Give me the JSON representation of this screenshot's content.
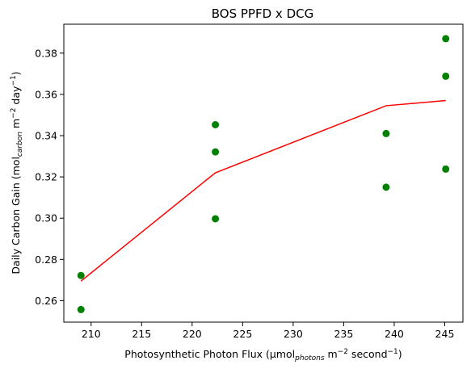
{
  "chart_data": {
    "type": "scatter",
    "title": "BOS PPFD x DCG",
    "xlabel": {
      "pre": "Photosynthetic Photon Flux (µmol",
      "sub": "photons",
      "mid": " m",
      "sup1": "−2",
      "mid2": " second",
      "sup2": "−1",
      "post": ")"
    },
    "ylabel": {
      "pre": "Daily Carbon Gain (mol",
      "sub": "carbon",
      "mid": " m",
      "sup1": "−2",
      "mid2": " day",
      "sup2": "−1",
      "post": ")"
    },
    "xlim": [
      207.3,
      246.8
    ],
    "ylim": [
      0.2496,
      0.394
    ],
    "xticks": [
      210,
      215,
      220,
      225,
      230,
      235,
      240,
      245
    ],
    "yticks": [
      0.26,
      0.28,
      0.3,
      0.32,
      0.34,
      0.36,
      0.38
    ],
    "ytick_labels": [
      "0.26",
      "0.28",
      "0.30",
      "0.32",
      "0.34",
      "0.36",
      "0.38"
    ],
    "grid": false,
    "colors": {
      "points": "#008000",
      "line": "#ff0000"
    },
    "series": [
      {
        "kind": "scatter",
        "x": [
          209,
          209,
          222.3,
          222.3,
          222.3,
          239.2,
          239.2,
          245.1,
          245.1,
          245.1
        ],
        "y": [
          0.2722,
          0.2557,
          0.3453,
          0.3321,
          0.2997,
          0.341,
          0.315,
          0.387,
          0.3688,
          0.3238
        ]
      },
      {
        "kind": "line",
        "x": [
          209,
          222.3,
          239.2,
          245.1
        ],
        "y": [
          0.2695,
          0.322,
          0.3545,
          0.357
        ]
      }
    ]
  }
}
